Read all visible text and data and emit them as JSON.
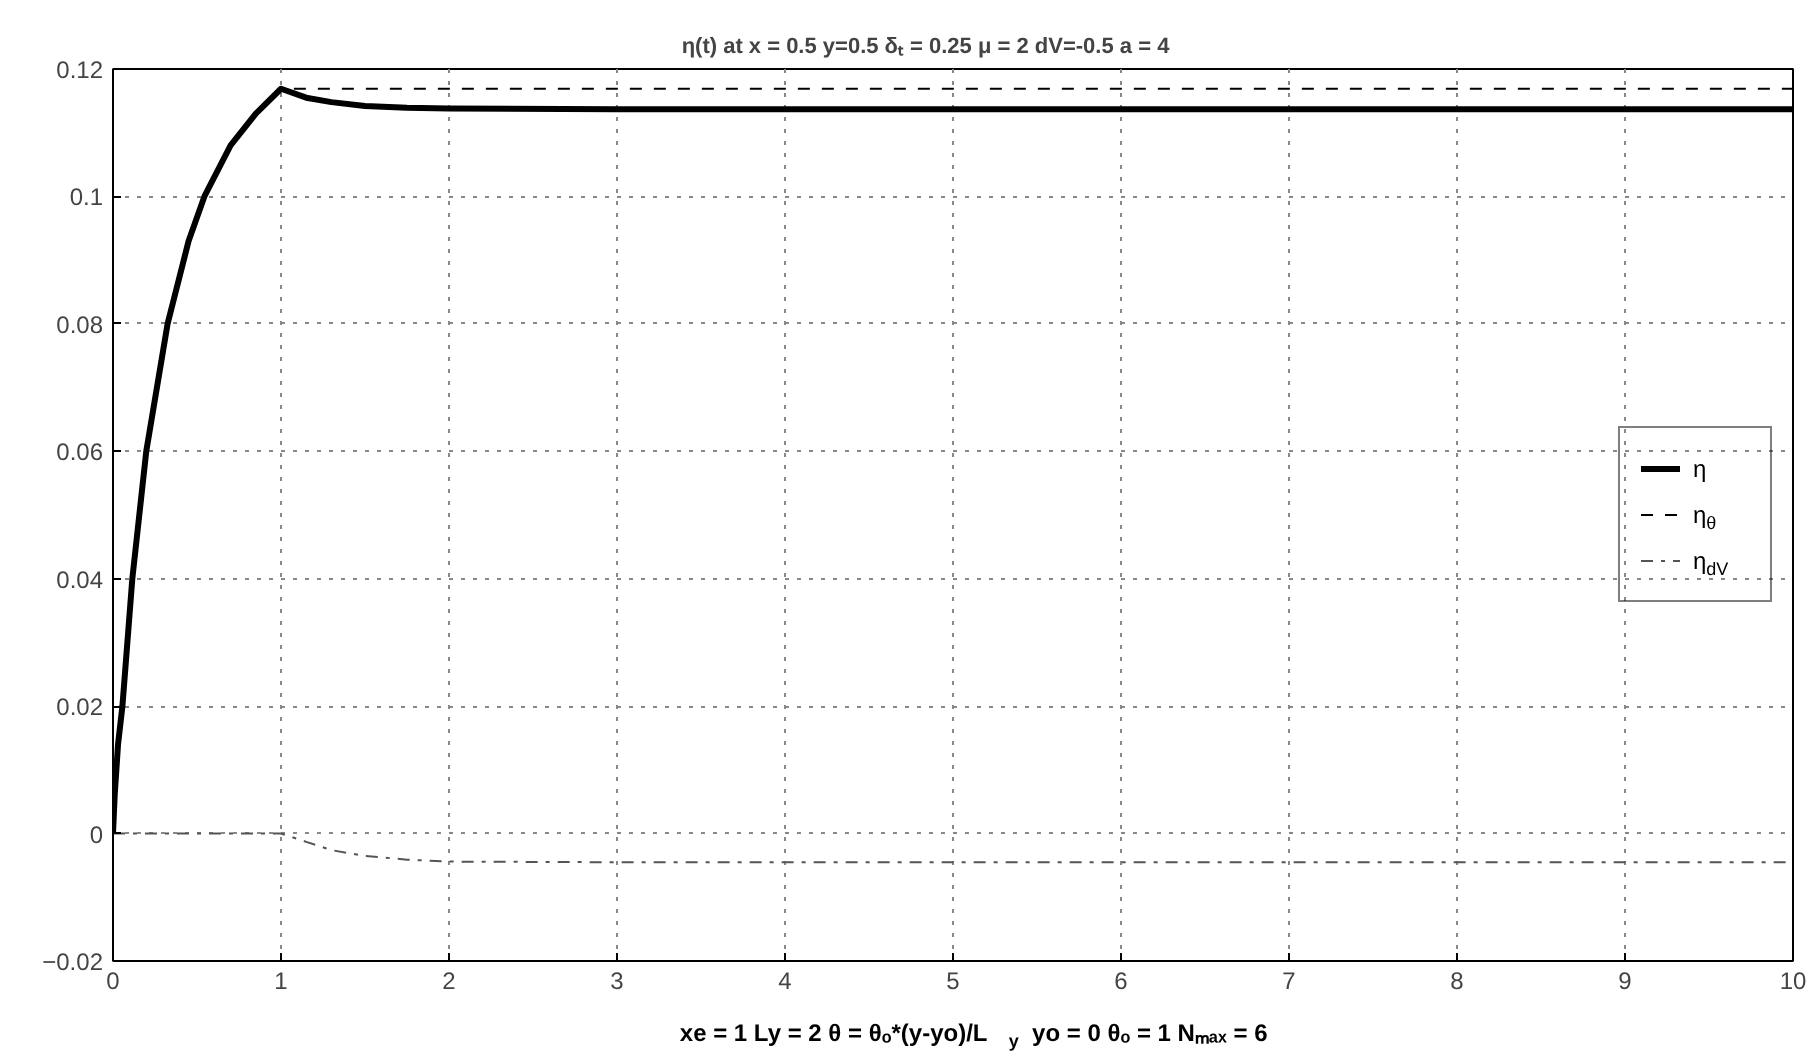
{
  "chart_data": {
    "type": "line",
    "title": "η(t) at x = 0.5   y=0.5   δₜ =  0.25   μ = 2  dV=-0.5  a = 4",
    "xlabel": "xe = 1  Ly = 2   θ = θₒ*(y-yo)/L$_{y}$  yo =  0   θₒ = 1   Nₘₐₓ = 6",
    "xlim": [
      0,
      10
    ],
    "xticks": [
      0,
      1,
      2,
      3,
      4,
      5,
      6,
      7,
      8,
      9,
      10
    ],
    "ylim": [
      -0.02,
      0.12
    ],
    "yticks": [
      -0.02,
      0,
      0.02,
      0.04,
      0.06,
      0.08,
      0.1,
      0.12
    ],
    "grid": true,
    "legend": "right",
    "series": [
      {
        "name": "η",
        "color": "#000000",
        "line_style": "solid",
        "x": [
          0,
          0.01,
          0.03,
          0.056,
          0.115,
          0.198,
          0.325,
          0.45,
          0.544,
          0.7,
          0.85,
          1,
          1.15,
          1.3,
          1.5,
          1.75,
          2,
          3,
          5,
          10
        ],
        "values": [
          0,
          0.006,
          0.014,
          0.02,
          0.04,
          0.06,
          0.08,
          0.093,
          0.1,
          0.108,
          0.113,
          0.1169,
          0.1155,
          0.1148,
          0.1142,
          0.1139,
          0.1138,
          0.1137,
          0.1137,
          0.1137
        ]
      },
      {
        "name": "η$_{θ}$",
        "color": "#000000",
        "line_style": "dashed",
        "x": [
          0,
          0.01,
          0.03,
          0.056,
          0.115,
          0.198,
          0.325,
          0.45,
          0.544,
          0.7,
          0.85,
          1,
          10
        ],
        "values": [
          0,
          0.006,
          0.014,
          0.02,
          0.04,
          0.06,
          0.08,
          0.093,
          0.1,
          0.108,
          0.113,
          0.1169,
          0.1169
        ]
      },
      {
        "name": "η$_{dV}$",
        "color": "#555555",
        "line_style": "dashdot",
        "x": [
          0,
          1,
          1.15,
          1.3,
          1.5,
          1.75,
          2,
          3,
          10
        ],
        "values": [
          0,
          0,
          -0.0013,
          -0.0026,
          -0.0035,
          -0.0041,
          -0.0044,
          -0.0045,
          -0.0045
        ]
      }
    ]
  }
}
